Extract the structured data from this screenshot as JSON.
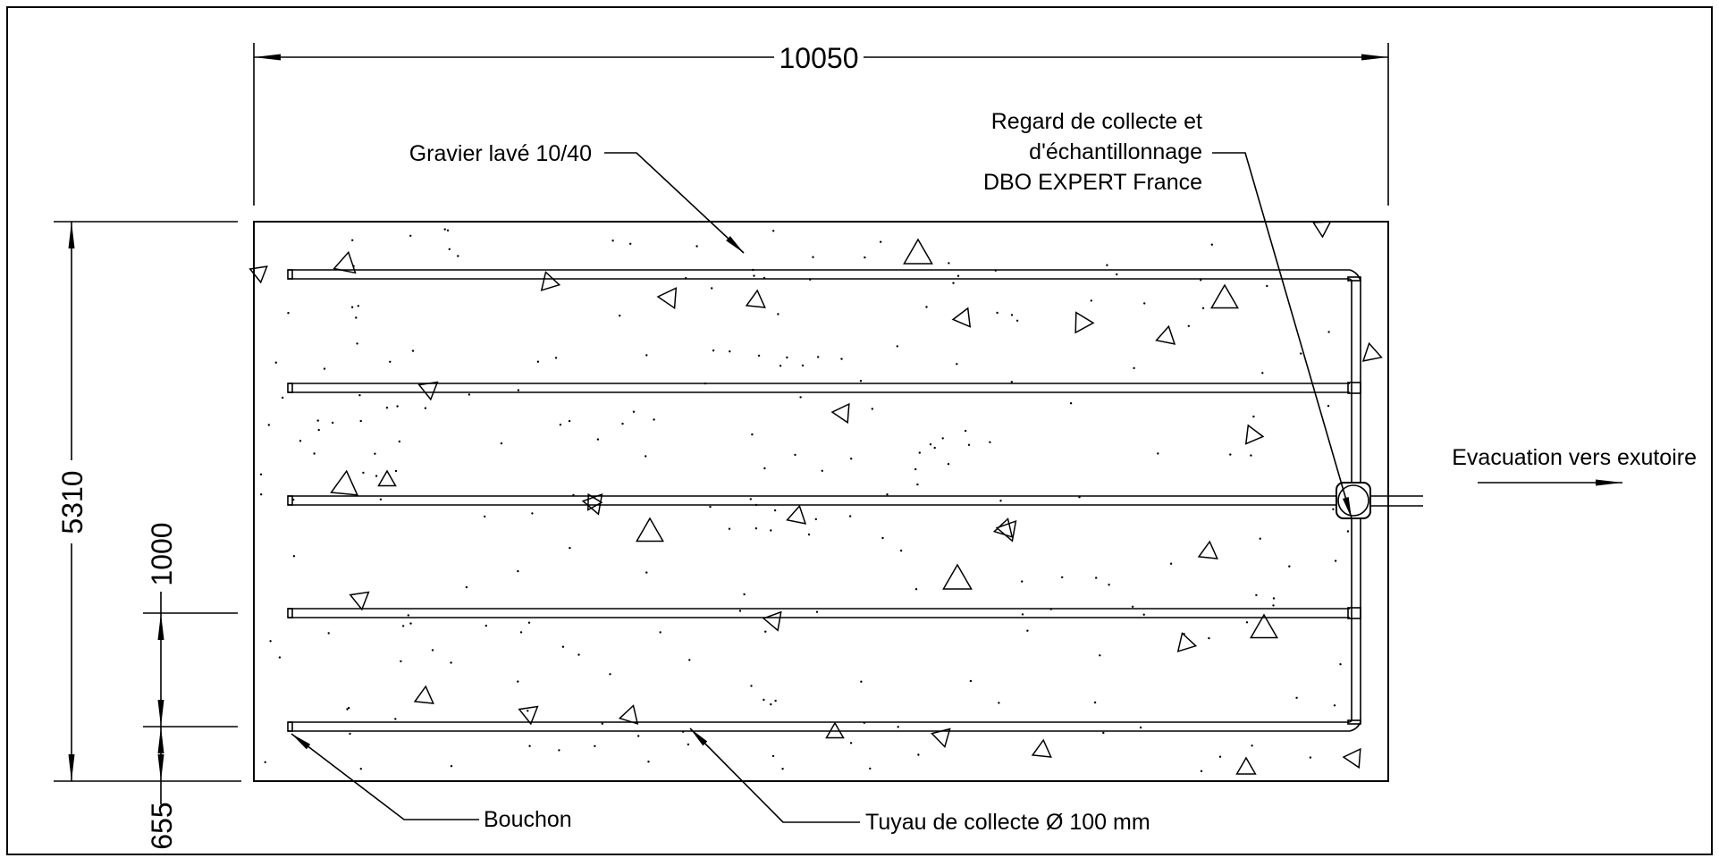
{
  "dimensions": {
    "overall_length": "10050",
    "overall_width": "5310",
    "pipe_spacing": "1000",
    "edge_offset": "655"
  },
  "labels": {
    "gravel": "Gravier lavé 10/40",
    "manhole_line1": "Regard de collecte et",
    "manhole_line2": "d'échantillonnage",
    "manhole_line3": "DBO EXPERT France",
    "outlet": "Evacuation vers exutoire",
    "cap": "Bouchon",
    "pipe": "Tuyau de collecte Ø 100 mm"
  },
  "pipe_count": 5,
  "colors": {
    "ink": "#000000",
    "paper": "#ffffff"
  }
}
